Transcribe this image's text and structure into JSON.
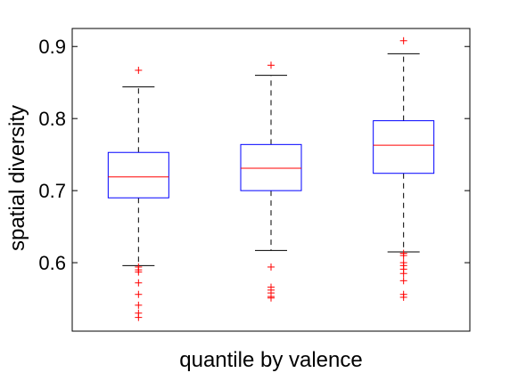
{
  "chart_data": {
    "type": "box",
    "xlabel": "quantile by valence",
    "ylabel": "spatial diversity",
    "ylim": [
      0.505,
      0.925
    ],
    "yticks": [
      0.6,
      0.7,
      0.8,
      0.9
    ],
    "ytick_labels": [
      "0.6",
      "0.7",
      "0.8",
      "0.9"
    ],
    "grid": false,
    "colors": {
      "box": "#0000ff",
      "median": "#ff0000",
      "whisker": "#000000",
      "outlier": "#ff0000"
    },
    "boxes": [
      {
        "q1": 0.69,
        "median": 0.719,
        "q3": 0.753,
        "whisker_low": 0.596,
        "whisker_high": 0.844,
        "outliers": [
          0.867,
          0.594,
          0.59,
          0.587,
          0.572,
          0.556,
          0.541,
          0.53,
          0.524
        ]
      },
      {
        "q1": 0.7,
        "median": 0.731,
        "q3": 0.764,
        "whisker_low": 0.617,
        "whisker_high": 0.86,
        "outliers": [
          0.874,
          0.594,
          0.566,
          0.562,
          0.558,
          0.553,
          0.551
        ]
      },
      {
        "q1": 0.724,
        "median": 0.763,
        "q3": 0.797,
        "whisker_low": 0.615,
        "whisker_high": 0.89,
        "outliers": [
          0.908,
          0.613,
          0.61,
          0.6,
          0.596,
          0.591,
          0.585,
          0.575,
          0.556,
          0.552
        ]
      }
    ]
  }
}
